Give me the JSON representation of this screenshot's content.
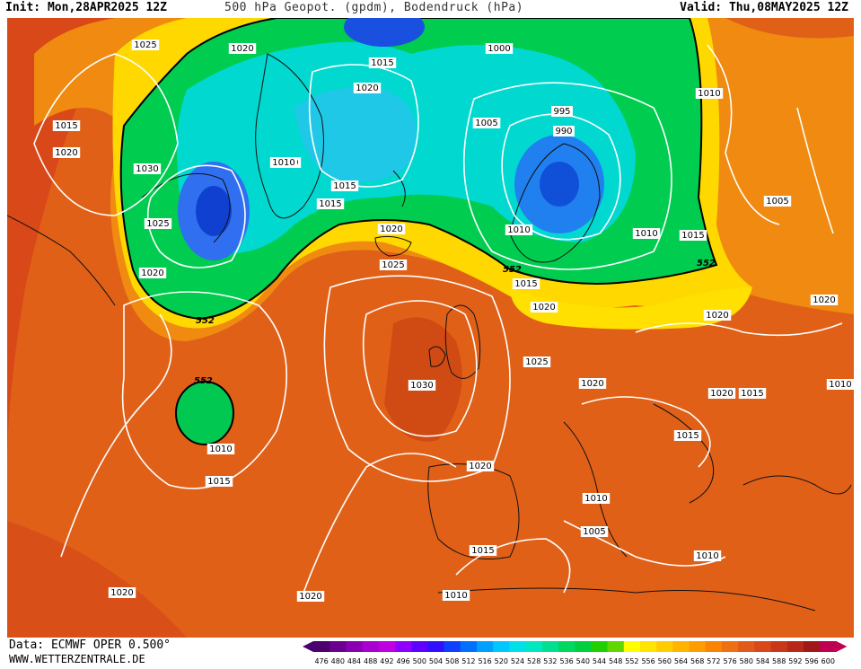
{
  "header": {
    "init": "Init: Mon,28APR2025 12Z",
    "title": "500 hPa Geopot. (gpdm), Bodendruck (hPa)",
    "valid": "Valid: Thu,08MAY2025 12Z"
  },
  "footer": {
    "data_source": "Data: ECMWF OPER 0.500°",
    "website": "WWW.WETTERZENTRALE.DE"
  },
  "colors": {
    "low_core": "#1030d0",
    "trough": "#00c060",
    "ridge": "#ffe000",
    "warm": "#e05a1a",
    "isobar": "#ffffff",
    "contour_552": "#000000"
  },
  "contour_labels": {
    "geopotential_552": [
      "552",
      "552",
      "552",
      "552"
    ]
  },
  "isobar_labels": [
    "1025",
    "1020",
    "1015",
    "1020",
    "1030",
    "1025",
    "1020",
    "1015",
    "1020",
    "1000",
    "1005",
    "1010",
    "1005",
    "995",
    "990",
    "1010",
    "1015",
    "1015",
    "1020",
    "1010",
    "1010",
    "1015",
    "1020",
    "1025",
    "1030",
    "1015",
    "1020",
    "1025",
    "1020",
    "1020",
    "1020",
    "1015",
    "1015",
    "1010",
    "1010",
    "1005",
    "1010",
    "1015",
    "1020",
    "1010",
    "1020",
    "1015",
    "1010",
    "1005",
    "1010",
    "1020"
  ],
  "legend": {
    "values": [
      "476",
      "480",
      "484",
      "488",
      "492",
      "496",
      "500",
      "504",
      "508",
      "512",
      "516",
      "520",
      "524",
      "528",
      "532",
      "536",
      "540",
      "544",
      "548",
      "552",
      "556",
      "560",
      "564",
      "568",
      "572",
      "576",
      "580",
      "584",
      "588",
      "592",
      "596",
      "600"
    ],
    "colors": [
      "#4b006e",
      "#6a0090",
      "#8a00b0",
      "#a800d0",
      "#c000e0",
      "#9000ff",
      "#6000ff",
      "#3010ff",
      "#1040ff",
      "#0070ff",
      "#00a0ff",
      "#00c8ff",
      "#00e0e8",
      "#00e8c0",
      "#00e090",
      "#00d860",
      "#00d040",
      "#20d000",
      "#60d800",
      "#ffff00",
      "#ffe400",
      "#ffcc00",
      "#ffb400",
      "#ff9c00",
      "#f88400",
      "#ee7010",
      "#e05a1a",
      "#d84818",
      "#c83818",
      "#b82818",
      "#a01818",
      "#c00050"
    ]
  }
}
